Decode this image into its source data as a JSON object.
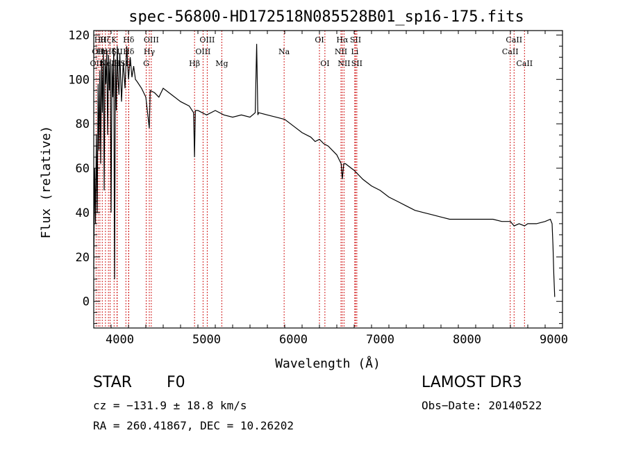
{
  "chart_data": {
    "type": "line",
    "title": "spec-56800-HD172518N085528B01_sp16-175.fits",
    "xlabel": "Wavelength (Å)",
    "ylabel": "Flux (relative)",
    "xlim": [
      3700,
      9100
    ],
    "ylim": [
      -12,
      122
    ],
    "xticks": [
      4000,
      5000,
      6000,
      7000,
      8000,
      9000
    ],
    "yticks": [
      0,
      20,
      40,
      60,
      80,
      100,
      120
    ],
    "series": [
      {
        "name": "flux",
        "x": [
          3700,
          3710,
          3720,
          3730,
          3740,
          3750,
          3760,
          3770,
          3780,
          3790,
          3800,
          3810,
          3820,
          3830,
          3840,
          3850,
          3860,
          3870,
          3880,
          3890,
          3900,
          3910,
          3920,
          3930,
          3940,
          3950,
          3960,
          3970,
          3980,
          3990,
          4000,
          4020,
          4040,
          4060,
          4080,
          4100,
          4120,
          4140,
          4160,
          4180,
          4200,
          4250,
          4300,
          4340,
          4350,
          4400,
          4450,
          4500,
          4600,
          4700,
          4800,
          4850,
          4861,
          4870,
          4900,
          5000,
          5100,
          5200,
          5300,
          5400,
          5500,
          5560,
          5577,
          5590,
          5600,
          5700,
          5800,
          5900,
          6000,
          6100,
          6200,
          6250,
          6300,
          6350,
          6400,
          6500,
          6550,
          6563,
          6580,
          6600,
          6700,
          6800,
          6900,
          7000,
          7100,
          7200,
          7300,
          7400,
          7500,
          7600,
          7700,
          7800,
          7900,
          8000,
          8100,
          8200,
          8300,
          8400,
          8500,
          8542,
          8600,
          8662,
          8700,
          8800,
          8900,
          8960,
          8980,
          8990,
          9000,
          9010
        ],
        "values": [
          15,
          60,
          35,
          75,
          40,
          98,
          68,
          104,
          62,
          109,
          85,
          114,
          50,
          109,
          98,
          112,
          75,
          111,
          95,
          109,
          40,
          107,
          92,
          114,
          10,
          109,
          86,
          115,
          100,
          93,
          112,
          90,
          108,
          96,
          115,
          100,
          110,
          101,
          106,
          100,
          99,
          96,
          92,
          78,
          95,
          94,
          92,
          96,
          93,
          90,
          88,
          85,
          65,
          86,
          86,
          84,
          86,
          84,
          83,
          84,
          83,
          85,
          116,
          84,
          85,
          84,
          83,
          82,
          79,
          76,
          74,
          72,
          73,
          71,
          70,
          66,
          62,
          55,
          62,
          62,
          59,
          55,
          52,
          50,
          47,
          45,
          43,
          41,
          40,
          39,
          38,
          37,
          37,
          37,
          37,
          37,
          37,
          36,
          36,
          34,
          35,
          34,
          35,
          35,
          36,
          37,
          35,
          25,
          12,
          2
        ]
      }
    ],
    "line_markers": [
      {
        "wavelength": 3727,
        "row": 2,
        "label": "OII"
      },
      {
        "wavelength": 3750,
        "row": 1,
        "label": "OII"
      },
      {
        "wavelength": 3771,
        "row": 0,
        "label": "Hθ"
      },
      {
        "wavelength": 3798,
        "row": 1,
        "label": "Hη"
      },
      {
        "wavelength": 3835,
        "row": 0,
        "label": "Hζ"
      },
      {
        "wavelength": 3869,
        "row": 2,
        "label": "NeII"
      },
      {
        "wavelength": 3889,
        "row": 1,
        "label": "Hζ"
      },
      {
        "wavelength": 3934,
        "row": 0,
        "label": "K"
      },
      {
        "wavelength": 3968,
        "row": 2,
        "label": "H"
      },
      {
        "wavelength": 3970,
        "row": 1,
        "label": "SII"
      },
      {
        "wavelength": 4070,
        "row": 2,
        "label": "SII"
      },
      {
        "wavelength": 4102,
        "row": 0,
        "label": "Hδ"
      },
      {
        "wavelength": 4102,
        "row": 1,
        "label": "Hδ"
      },
      {
        "wavelength": 4304,
        "row": 2,
        "label": "G"
      },
      {
        "wavelength": 4340,
        "row": 1,
        "label": "Hγ"
      },
      {
        "wavelength": 4363,
        "row": 0,
        "label": "OIII"
      },
      {
        "wavelength": 4861,
        "row": 2,
        "label": "Hβ"
      },
      {
        "wavelength": 4959,
        "row": 1,
        "label": "OIII"
      },
      {
        "wavelength": 5007,
        "row": 0,
        "label": "OIII"
      },
      {
        "wavelength": 5175,
        "row": 2,
        "label": "Mg"
      },
      {
        "wavelength": 5893,
        "row": 1,
        "label": "Na"
      },
      {
        "wavelength": 6300,
        "row": 0,
        "label": "OI"
      },
      {
        "wavelength": 6363,
        "row": 2,
        "label": "OI"
      },
      {
        "wavelength": 6548,
        "row": 1,
        "label": "NII"
      },
      {
        "wavelength": 6563,
        "row": 0,
        "label": "Hα"
      },
      {
        "wavelength": 6583,
        "row": 2,
        "label": "NII"
      },
      {
        "wavelength": 6707,
        "row": 1,
        "label": "Li"
      },
      {
        "wavelength": 6716,
        "row": 0,
        "label": "SII"
      },
      {
        "wavelength": 6731,
        "row": 2,
        "label": "SII"
      },
      {
        "wavelength": 8498,
        "row": 1,
        "label": "CaII"
      },
      {
        "wavelength": 8542,
        "row": 0,
        "label": "CaII"
      },
      {
        "wavelength": 8662,
        "row": 2,
        "label": "CaII"
      }
    ]
  },
  "info": {
    "object_type": "STAR",
    "subclass": "F0",
    "survey": "LAMOST DR3",
    "cz": "cz = −131.9 ± 18.8 km/s",
    "obs_date": "Obs−Date: 20140522",
    "coords": "RA = 260.41867, DEC =  10.26202"
  },
  "colors": {
    "spectrum": "#000000",
    "marker": "#cc0000",
    "axes": "#000000"
  }
}
